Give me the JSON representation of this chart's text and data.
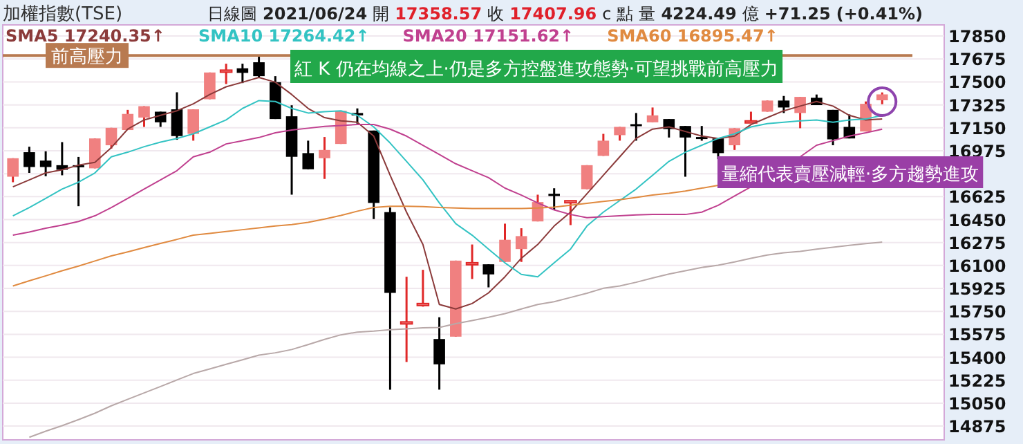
{
  "chart_data": {
    "type": "candlestick",
    "title": "加權指數(TSE)",
    "subtitle": "日線圖 2021/06/24 開 17358.57 收 17407.96 c 點 量 4224.49 億 +71.25 (+0.41%)",
    "categories": [
      null,
      null,
      null,
      null,
      null,
      null,
      null,
      null,
      null,
      null,
      null,
      null,
      null,
      null,
      null,
      null,
      null,
      null,
      null,
      null,
      null,
      null,
      null,
      null,
      null,
      null,
      null,
      null,
      null,
      null,
      null,
      null,
      null,
      null,
      null,
      null,
      null,
      null,
      null,
      null,
      null,
      null,
      null,
      null,
      null,
      null,
      null,
      null,
      null,
      null,
      null,
      null,
      null,
      null
    ],
    "ohlc": [
      [
        16777,
        16918,
        16735,
        16918
      ],
      [
        16964,
        17006,
        16806,
        16851
      ],
      [
        16900,
        16971,
        16781,
        16851
      ],
      [
        16865,
        17041,
        16788,
        16830
      ],
      [
        16865,
        16928,
        16552,
        16862
      ],
      [
        16841,
        17069,
        16841,
        17069
      ],
      [
        17017,
        17150,
        16992,
        17150
      ],
      [
        17133,
        17287,
        17133,
        17256
      ],
      [
        17228,
        17315,
        17157,
        17315
      ],
      [
        17273,
        17273,
        17157,
        17192
      ],
      [
        17291,
        17421,
        17059,
        17087
      ],
      [
        17104,
        17291,
        17052,
        17291
      ],
      [
        17368,
        17572,
        17368,
        17572
      ],
      [
        17583,
        17639,
        17484,
        17590
      ],
      [
        17604,
        17639,
        17491,
        17569
      ],
      [
        17650,
        17692,
        17534,
        17544
      ],
      [
        17498,
        17544,
        17217,
        17217
      ],
      [
        17238,
        17322,
        16640,
        16929
      ],
      [
        16957,
        17052,
        16834,
        16834
      ],
      [
        16918,
        17080,
        16760,
        16981
      ],
      [
        17027,
        17280,
        17027,
        17280
      ],
      [
        17263,
        17298,
        17182,
        17245
      ],
      [
        17129,
        17129,
        16454,
        16577
      ],
      [
        16507,
        16542,
        15153,
        15891
      ],
      [
        15663,
        16014,
        15364,
        15670
      ],
      [
        15807,
        16067,
        15786,
        15810
      ],
      [
        15539,
        15705,
        15153,
        15346
      ],
      [
        15557,
        16137,
        15557,
        16137
      ],
      [
        16114,
        16260,
        15997,
        16121
      ],
      [
        16109,
        16109,
        15933,
        16032
      ],
      [
        16127,
        16419,
        16127,
        16296
      ],
      [
        16225,
        16384,
        16127,
        16324
      ],
      [
        16436,
        16640,
        16436,
        16584
      ],
      [
        16647,
        16689,
        16524,
        16630
      ],
      [
        16590,
        16594,
        16408,
        16594
      ],
      [
        16682,
        16865,
        16682,
        16865
      ],
      [
        16936,
        17104,
        16936,
        17052
      ],
      [
        17094,
        17157,
        17052,
        17157
      ],
      [
        17178,
        17263,
        17052,
        17175
      ],
      [
        17192,
        17305,
        17192,
        17245
      ],
      [
        17217,
        17217,
        17076,
        17140
      ],
      [
        17164,
        17164,
        16777,
        17076
      ],
      [
        17080,
        17164,
        17052,
        17076
      ],
      [
        17069,
        17069,
        16911,
        16957
      ],
      [
        17017,
        17147,
        16981,
        17147
      ],
      [
        17200,
        17273,
        17200,
        17203
      ],
      [
        17273,
        17358,
        17273,
        17358
      ],
      [
        17358,
        17393,
        17263,
        17305
      ],
      [
        17263,
        17386,
        17147,
        17386
      ],
      [
        17379,
        17404,
        17323,
        17323
      ],
      [
        17287,
        17287,
        17017,
        17062
      ],
      [
        17157,
        17252,
        17069,
        17069
      ],
      [
        17122,
        17351,
        17122,
        17333
      ],
      [
        17360,
        17420,
        17330,
        17405
      ]
    ],
    "series": [
      {
        "type": "line",
        "name": "SMA5 17240.35↑",
        "color": "#8b3a3a",
        "values": [
          16700,
          16753,
          16806,
          16830,
          16865,
          16886,
          16999,
          17140,
          17210,
          17245,
          17280,
          17333,
          17404,
          17463,
          17498,
          17534,
          17498,
          17404,
          17298,
          17228,
          17203,
          17193,
          17087,
          16788,
          16507,
          16260,
          15803,
          15768,
          15810,
          15891,
          16014,
          16155,
          16260,
          16401,
          16507,
          16647,
          16788,
          16929,
          17069,
          17140,
          17157,
          17122,
          17087,
          17069,
          17087,
          17175,
          17228,
          17280,
          17316,
          17351,
          17316,
          17245,
          17210,
          17217
        ]
      },
      {
        "type": "line",
        "name": "SMA10 17264.42↑",
        "color": "#33c3c3",
        "values": [
          16479,
          16542,
          16612,
          16683,
          16735,
          16806,
          16929,
          16964,
          17006,
          17041,
          17069,
          17104,
          17157,
          17210,
          17298,
          17358,
          17351,
          17298,
          17263,
          17273,
          17280,
          17245,
          17157,
          17034,
          16894,
          16753,
          16577,
          16419,
          16331,
          16225,
          16120,
          16032,
          16014,
          16120,
          16225,
          16401,
          16507,
          16595,
          16683,
          16788,
          16894,
          16964,
          17017,
          17069,
          17104,
          17157,
          17182,
          17193,
          17203,
          17210,
          17193,
          17210,
          17217,
          17245
        ]
      },
      {
        "type": "line",
        "name": "SMA20 17151.62↑",
        "color": "#c0408f",
        "values": [
          16331,
          16355,
          16384,
          16408,
          16436,
          16479,
          16542,
          16612,
          16683,
          16753,
          16823,
          16929,
          16964,
          17027,
          17052,
          17076,
          17112,
          17133,
          17147,
          17161,
          17168,
          17175,
          17175,
          17140,
          17087,
          17017,
          16946,
          16876,
          16823,
          16770,
          16690,
          16637,
          16577,
          16524,
          16489,
          16465,
          16472,
          16479,
          16486,
          16489,
          16489,
          16489,
          16507,
          16559,
          16630,
          16700,
          null,
          null,
          16929,
          17017,
          17052,
          17087,
          17112,
          17140
        ]
      },
      {
        "type": "line",
        "name": "SMA60 16895.47↑",
        "color": "#e08a40",
        "values": [
          15944,
          15983,
          16021,
          16060,
          16095,
          16134,
          16173,
          16204,
          16236,
          16268,
          16299,
          16331,
          16345,
          16359,
          16373,
          16387,
          16401,
          16412,
          16429,
          16454,
          16482,
          16514,
          16542,
          16552,
          16552,
          16549,
          16542,
          16538,
          16535,
          16535,
          16535,
          16535,
          16538,
          16545,
          16559,
          16574,
          16588,
          16602,
          16619,
          16637,
          16651,
          16668,
          16690,
          16711,
          null,
          null,
          null,
          null,
          null,
          null,
          null,
          null,
          null,
          null
        ]
      },
      {
        "type": "line",
        "color": "#b8a8a8",
        "values": [
          null,
          14790,
          14836,
          14878,
          14924,
          14973,
          15030,
          15079,
          15128,
          15177,
          15227,
          15276,
          15311,
          15346,
          15381,
          15416,
          15434,
          15459,
          15497,
          15536,
          15571,
          15592,
          15599,
          15610,
          15617,
          15624,
          15627,
          15656,
          15680,
          15705,
          15733,
          15768,
          15803,
          15824,
          15856,
          15888,
          15926,
          15944,
          15972,
          16004,
          16035,
          16060,
          16085,
          16102,
          16127,
          16155,
          16180,
          16197,
          16208,
          16225,
          16239,
          16253,
          16267,
          16278
        ]
      }
    ],
    "ylim": [
      14770,
      17935
    ],
    "yticks": [
      17850,
      17675,
      17500,
      17325,
      17150,
      16975,
      {
        "value": 16800,
        "label": null
      },
      16625,
      16450,
      16275,
      16100,
      15925,
      15750,
      15575,
      15400,
      15225,
      15050,
      14875
    ],
    "grid": "y",
    "legend": "top left",
    "ref_lines": [
      {
        "axis": "y",
        "value": 17702,
        "label": "前高壓力",
        "color": "#b87a50"
      }
    ],
    "annotations": [
      "紅 K 仍在均線之上·仍是多方控盤進攻態勢·可望挑戰前高壓力",
      "量縮代表賣壓減輕·多方趨勢進攻"
    ]
  }
}
